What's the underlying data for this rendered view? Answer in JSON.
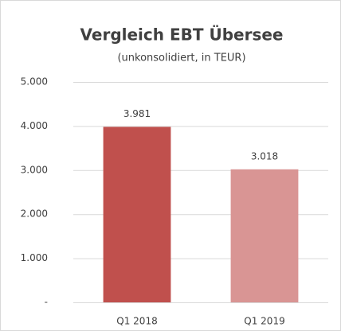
{
  "chart_data": {
    "type": "bar",
    "title": "Vergleich EBT Übersee",
    "subtitle": "(unkonsolidiert, in TEUR)",
    "categories": [
      "Q1 2018",
      "Q1 2019"
    ],
    "values": [
      3981,
      3018
    ],
    "value_labels": [
      "3.981",
      "3.018"
    ],
    "colors": [
      "#c0504d",
      "#d99594"
    ],
    "ylim": [
      0,
      5000
    ],
    "yticks": [
      {
        "value": 0,
        "label": "-"
      },
      {
        "value": 1000,
        "label": "1.000"
      },
      {
        "value": 2000,
        "label": "2.000"
      },
      {
        "value": 3000,
        "label": "3.000"
      },
      {
        "value": 4000,
        "label": "4.000"
      },
      {
        "value": 5000,
        "label": "5.000"
      }
    ],
    "grid": true
  }
}
